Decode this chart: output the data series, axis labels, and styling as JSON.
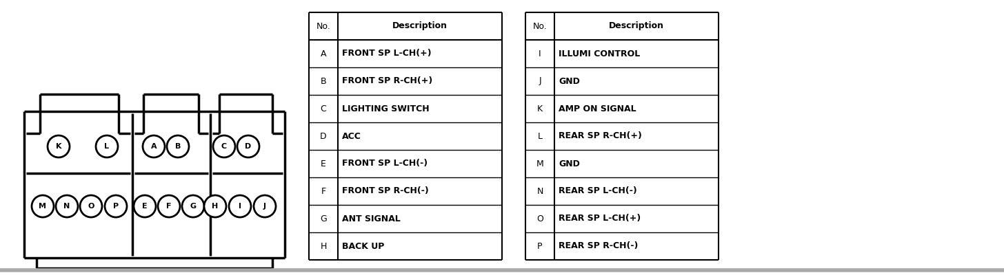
{
  "bg_color": "#ffffff",
  "line_color": "#000000",
  "table1": {
    "headers": [
      "No.",
      "Description"
    ],
    "rows": [
      [
        "A",
        "FRONT SP L-CH(+)"
      ],
      [
        "B",
        "FRONT SP R-CH(+)"
      ],
      [
        "C",
        "LIGHTING SWITCH"
      ],
      [
        "D",
        "ACC"
      ],
      [
        "E",
        "FRONT SP L-CH(-)"
      ],
      [
        "F",
        "FRONT SP R-CH(-)"
      ],
      [
        "G",
        "ANT SIGNAL"
      ],
      [
        "H",
        "BACK UP"
      ]
    ]
  },
  "table2": {
    "headers": [
      "No.",
      "Description"
    ],
    "rows": [
      [
        "I",
        "ILLUMI CONTROL"
      ],
      [
        "J",
        "GND"
      ],
      [
        "K",
        "AMP ON SIGNAL"
      ],
      [
        "L",
        "REAR SP R-CH(+)"
      ],
      [
        "M",
        "GND"
      ],
      [
        "N",
        "REAR SP L-CH(-)"
      ],
      [
        "O",
        "REAR SP L-CH(+)"
      ],
      [
        "P",
        "REAR SP R-CH(-)"
      ]
    ]
  }
}
